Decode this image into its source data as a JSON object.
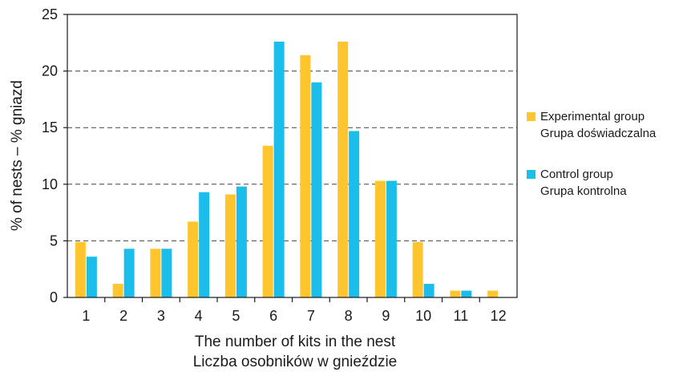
{
  "chart_data": {
    "type": "bar",
    "categories": [
      "1",
      "2",
      "3",
      "4",
      "5",
      "6",
      "7",
      "8",
      "9",
      "10",
      "11",
      "12"
    ],
    "series": [
      {
        "name": "Experimental group",
        "name_pl": "Grupa doświadczalna",
        "color": "#FFC52F",
        "values": [
          4.9,
          1.2,
          4.3,
          6.7,
          9.1,
          13.4,
          21.4,
          22.6,
          10.3,
          4.9,
          0.6,
          0.6
        ]
      },
      {
        "name": "Control group",
        "name_pl": "Grupa kontrolna",
        "color": "#1BBDEB",
        "values": [
          3.6,
          4.3,
          4.3,
          9.3,
          9.8,
          22.6,
          19.0,
          14.7,
          10.3,
          1.2,
          0.6,
          0.0
        ]
      }
    ],
    "xlabel": "The number of kits in the nest",
    "xlabel_pl": "Liczba osobników w gnieździe",
    "ylabel": "% of nests – % gniazd",
    "ylim": [
      0,
      25
    ],
    "yticks": [
      "0",
      "5",
      "10",
      "15",
      "20",
      "25"
    ],
    "grid": "horizontal dashed",
    "legend_position": "right"
  }
}
